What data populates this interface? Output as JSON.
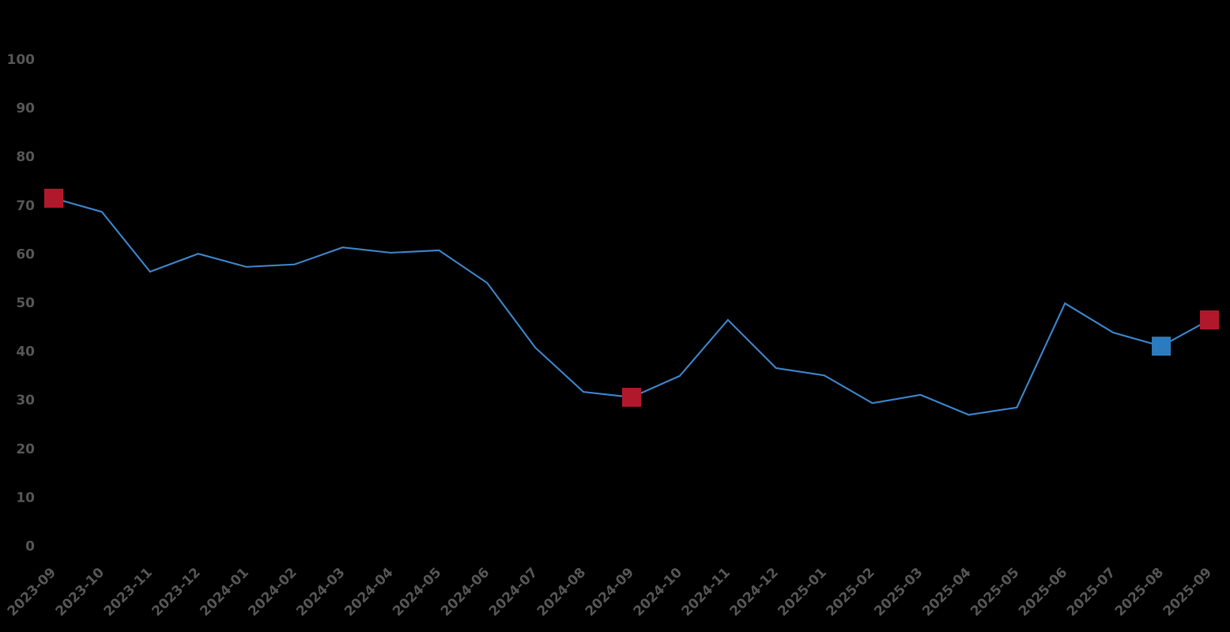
{
  "chart_data": {
    "type": "line",
    "categories": [
      "2023-09",
      "2023-10",
      "2023-11",
      "2023-12",
      "2024-01",
      "2024-02",
      "2024-03",
      "2024-04",
      "2024-05",
      "2024-06",
      "2024-07",
      "2024-08",
      "2024-09",
      "2024-10",
      "2024-11",
      "2024-12",
      "2025-01",
      "2025-02",
      "2025-03",
      "2025-04",
      "2025-05",
      "2025-06",
      "2025-07",
      "2025-08",
      "2025-09"
    ],
    "series": [
      {
        "color": "#3a7fc1",
        "values": [
          71.6,
          68.8,
          56.5,
          60.2,
          57.5,
          58.0,
          61.5,
          60.4,
          60.9,
          54.2,
          40.9,
          31.8,
          30.7,
          35.1,
          46.6,
          36.7,
          35.2,
          29.5,
          31.2,
          27.1,
          28.6,
          50.0,
          44.0,
          41.2,
          46.6
        ]
      }
    ],
    "highlight_points": [
      {
        "index": 0,
        "color": "#b2182b"
      },
      {
        "index": 12,
        "color": "#b2182b"
      },
      {
        "index": 23,
        "color": "#2c7bbf"
      },
      {
        "index": 24,
        "color": "#b2182b"
      }
    ],
    "ylim": [
      0,
      100
    ],
    "yticks": [
      0,
      10,
      20,
      30,
      40,
      50,
      60,
      70,
      80,
      90,
      100
    ],
    "grid": false
  }
}
